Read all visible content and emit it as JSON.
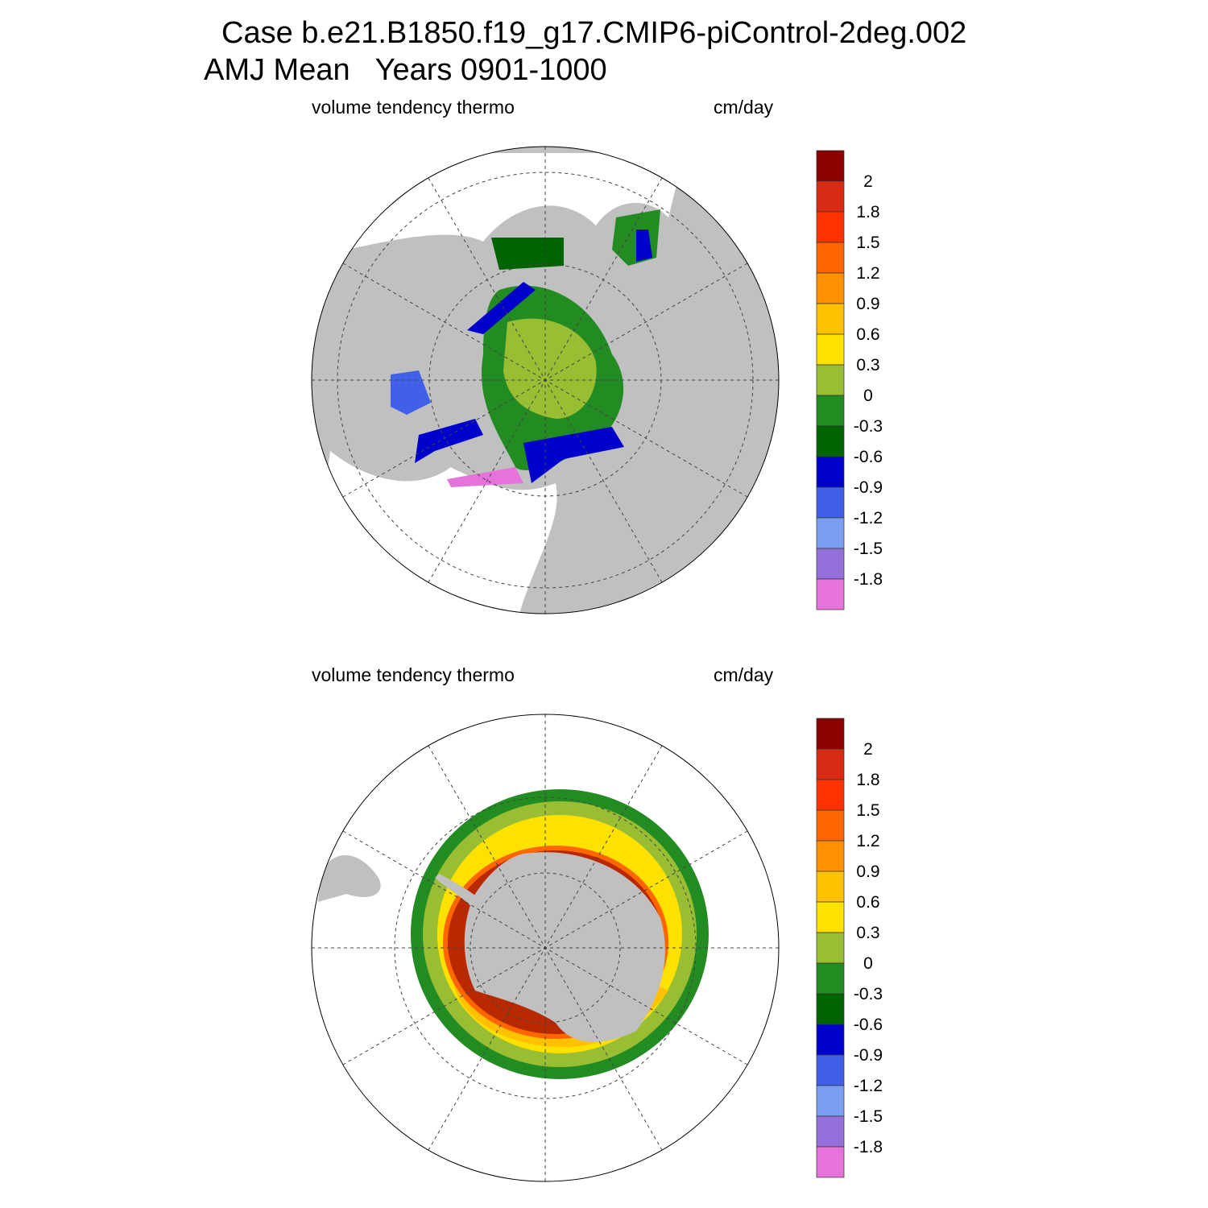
{
  "title": {
    "line1": "Case b.e21.B1850.f19_g17.CMIP6-piControl-2deg.002",
    "line2": "AMJ Mean   Years 0901-1000"
  },
  "panels": [
    {
      "hemisphere": "north",
      "left_label": "volume tendency thermo",
      "right_label": "cm/day"
    },
    {
      "hemisphere": "south",
      "left_label": "volume tendency thermo",
      "right_label": "cm/day"
    }
  ],
  "colorbar": {
    "labels": [
      "2",
      "1.8",
      "1.5",
      "1.2",
      "0.9",
      "0.6",
      "0.3",
      "0",
      "-0.3",
      "-0.6",
      "-0.9",
      "-1.2",
      "-1.5",
      "-1.8"
    ],
    "colors": [
      "#8b0000",
      "#d82b14",
      "#ff3300",
      "#ff6600",
      "#ff9100",
      "#ffc100",
      "#ffe100",
      "#99bd33",
      "#228b22",
      "#006400",
      "#0000cd",
      "#4060e8",
      "#7b9ef0",
      "#9370db",
      "#e673dc"
    ]
  },
  "land_color": "#c0c0c0"
}
